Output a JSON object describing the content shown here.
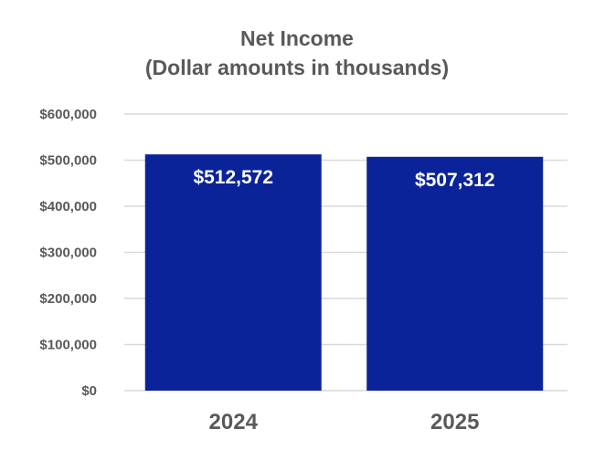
{
  "chart_data": {
    "type": "bar",
    "title_lines": [
      "Net Income",
      "(Dollar amounts in thousands)"
    ],
    "categories": [
      "2024",
      "2025"
    ],
    "values": [
      512572,
      507312
    ],
    "data_labels": [
      "$512,572",
      "$507,312"
    ],
    "y_ticks": [
      "$0",
      "$100,000",
      "$200,000",
      "$300,000",
      "$400,000",
      "$500,000",
      "$600,000"
    ],
    "ylim": [
      0,
      600000
    ],
    "grid": true,
    "legend": "none",
    "bar_color": "#0A2399",
    "grid_color": "#D9D9D9",
    "text_color": "#595959"
  }
}
